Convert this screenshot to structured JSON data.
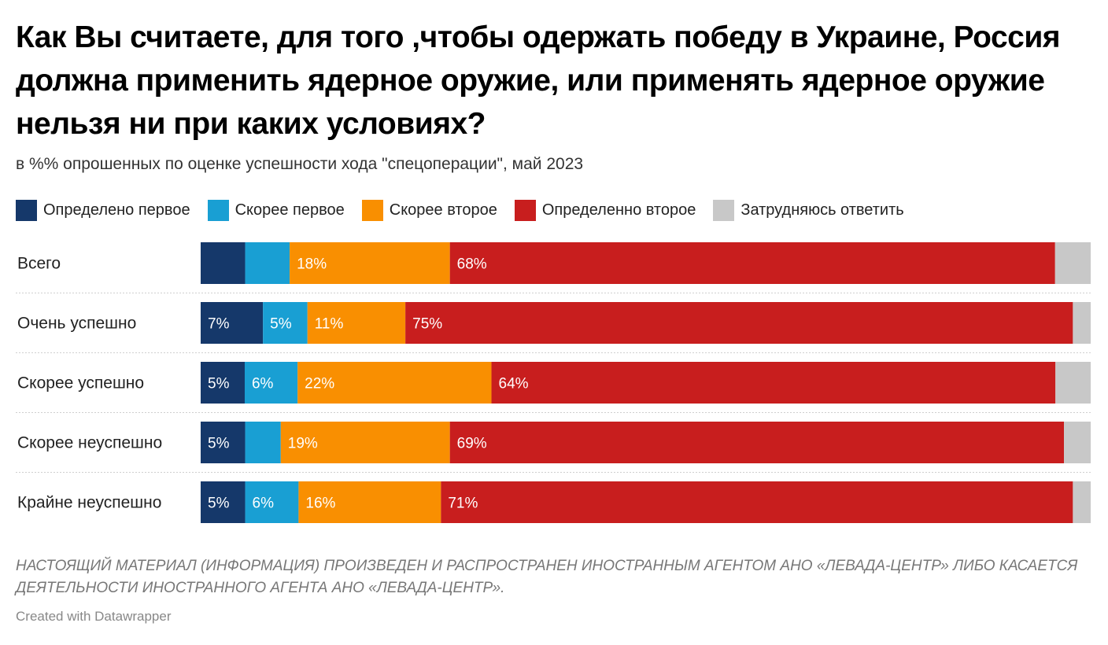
{
  "title": "Как Вы считаете, для того ,чтобы одержать победу в Украине, Россия должна применить ядерное оружие, или применять ядерное оружие нельзя ни при каких условиях?",
  "subtitle": "в %% опрошенных по оценке успешности хода \"спецоперации\", май 2023",
  "notes": "НАСТОЯЩИЙ МАТЕРИАЛ (ИНФОРМАЦИЯ) ПРОИЗВЕДЕН И РАСПРОСТРАНЕН ИНОСТРАННЫМ АГЕНТОМ АНО «ЛЕВАДА-ЦЕНТР» ЛИБО КАСАЕТСЯ ДЕЯТЕЛЬНОСТИ ИНОСТРАННОГО АГЕНТА АНО «ЛЕВАДА-ЦЕНТР».",
  "byline": "Created with Datawrapper",
  "chart_data": {
    "type": "bar",
    "orientation": "horizontal",
    "stacked": true,
    "xlim": [
      0,
      100
    ],
    "legend_position": "top",
    "categories": [
      "Всего",
      "Очень успешно",
      "Скорее успешно",
      "Скорее неуспешно",
      "Крайне неуспешно"
    ],
    "series": [
      {
        "name": "Определено первое",
        "color": "#15386a",
        "values": [
          5,
          7,
          5,
          5,
          5
        ],
        "labels": [
          "",
          "7%",
          "5%",
          "5%",
          "5%"
        ]
      },
      {
        "name": "Скорее первое",
        "color": "#199fd3",
        "values": [
          5,
          5,
          6,
          4,
          6
        ],
        "labels": [
          "",
          "5%",
          "6%",
          "",
          "6%"
        ]
      },
      {
        "name": "Скорее второе",
        "color": "#f98f01",
        "values": [
          18,
          11,
          22,
          19,
          16
        ],
        "labels": [
          "18%",
          "11%",
          "22%",
          "19%",
          "16%"
        ]
      },
      {
        "name": "Определенно второе",
        "color": "#c81e1e",
        "values": [
          68,
          75,
          64,
          69,
          71
        ],
        "labels": [
          "68%",
          "75%",
          "64%",
          "69%",
          "71%"
        ]
      },
      {
        "name": "Затрудняюсь ответить",
        "color": "#c8c8c8",
        "values": [
          4,
          2,
          4,
          3,
          2
        ],
        "labels": [
          "",
          "",
          "",
          "",
          ""
        ]
      }
    ]
  }
}
